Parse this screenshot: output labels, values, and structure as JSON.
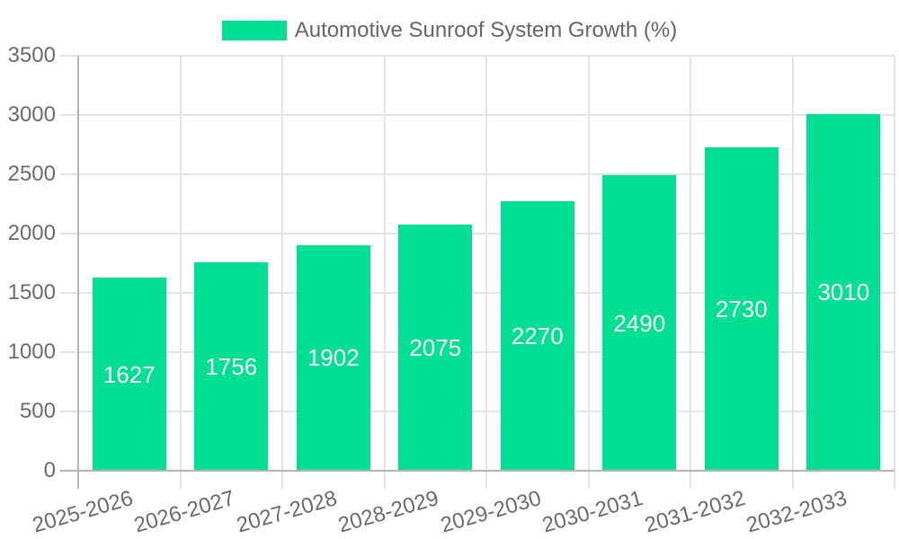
{
  "chart_data": {
    "type": "bar",
    "title": "Automotive Sunroof System Growth (%)",
    "legend": {
      "position": "top",
      "label": "Automotive Sunroof System Growth (%)"
    },
    "categories": [
      "2025-2026",
      "2026-2027",
      "2027-2028",
      "2028-2029",
      "2029-2030",
      "2030-2031",
      "2031-2032",
      "2032-2033"
    ],
    "series": [
      {
        "name": "Automotive Sunroof System Growth (%)",
        "color": "#00DF92",
        "values": [
          1627,
          1756,
          1902,
          2075,
          2270,
          2490,
          2730,
          3010
        ]
      }
    ],
    "value_labels": {
      "show": true,
      "position": "center",
      "color": "#FFFFFF"
    },
    "y_axis": {
      "min": 0,
      "max": 3500,
      "tick_step": 500,
      "ticks": [
        0,
        500,
        1000,
        1500,
        2000,
        2500,
        3000,
        3500
      ]
    },
    "x_axis": {
      "tick_labels_rotated": true
    },
    "grid": {
      "show": true
    },
    "colors": {
      "bar": "#00DF92",
      "grid_line": "#E4E4E4",
      "axis_line": "#B5B5B5",
      "axis_label": "#6B6B6B",
      "legend_label": "#666666",
      "value_label": "#FFFFFF",
      "background": "#FFFFFF"
    }
  }
}
